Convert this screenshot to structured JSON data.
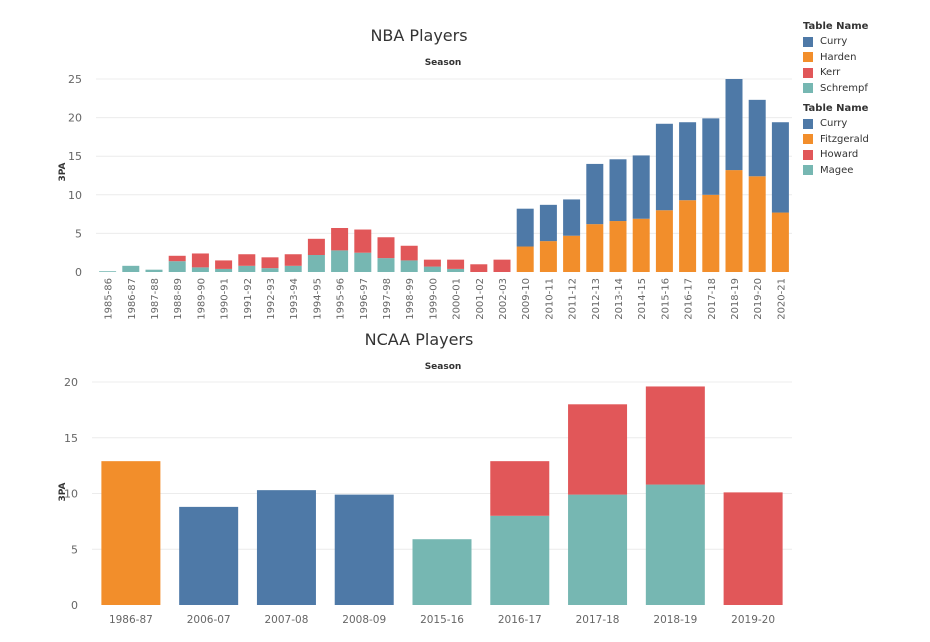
{
  "colors": {
    "blue": "#4e79a7",
    "orange": "#f28e2b",
    "red": "#e15759",
    "teal": "#76b7b2"
  },
  "legends": [
    {
      "title": "Table Name",
      "items": [
        {
          "label": "Curry",
          "color": "#4e79a7"
        },
        {
          "label": "Harden",
          "color": "#f28e2b"
        },
        {
          "label": "Kerr",
          "color": "#e15759"
        },
        {
          "label": "Schrempf",
          "color": "#76b7b2"
        }
      ]
    },
    {
      "title": "Table Name",
      "items": [
        {
          "label": "Curry",
          "color": "#4e79a7"
        },
        {
          "label": "Fitzgerald",
          "color": "#f28e2b"
        },
        {
          "label": "Howard",
          "color": "#e15759"
        },
        {
          "label": "Magee",
          "color": "#76b7b2"
        }
      ]
    }
  ],
  "chart_data": [
    {
      "type": "bar",
      "title": "NBA Players",
      "subtitle": "Season",
      "xlabel": "",
      "ylabel": "3PA",
      "ylim": [
        0,
        25
      ],
      "yticks": [
        0,
        5,
        10,
        15,
        20,
        25
      ],
      "grid": true,
      "stacked": true,
      "categories": [
        "1985-86",
        "1986-87",
        "1987-88",
        "1988-89",
        "1989-90",
        "1990-91",
        "1991-92",
        "1992-93",
        "1993-94",
        "1994-95",
        "1995-96",
        "1996-97",
        "1997-98",
        "1998-99",
        "1999-00",
        "2000-01",
        "2001-02",
        "2002-03",
        "2009-10",
        "2010-11",
        "2011-12",
        "2012-13",
        "2013-14",
        "2014-15",
        "2015-16",
        "2016-17",
        "2017-18",
        "2018-19",
        "2019-20",
        "2020-21"
      ],
      "series": [
        {
          "name": "Schrempf",
          "color": "#76b7b2",
          "values": [
            0.1,
            0.8,
            0.3,
            1.4,
            0.6,
            0.4,
            0.8,
            0.5,
            0.8,
            2.2,
            2.8,
            2.5,
            1.8,
            1.5,
            0.7,
            0.4,
            0,
            0,
            0,
            0,
            0,
            0,
            0,
            0,
            0,
            0,
            0,
            0,
            0,
            0
          ]
        },
        {
          "name": "Kerr",
          "color": "#e15759",
          "values": [
            0,
            0,
            0,
            0.7,
            1.8,
            1.1,
            1.5,
            1.4,
            1.5,
            2.1,
            2.9,
            3.0,
            2.7,
            1.9,
            0.9,
            1.2,
            1.0,
            1.6,
            0,
            0,
            0,
            0,
            0,
            0,
            0,
            0,
            0,
            0,
            0,
            0
          ]
        },
        {
          "name": "Harden",
          "color": "#f28e2b",
          "values": [
            0,
            0,
            0,
            0,
            0,
            0,
            0,
            0,
            0,
            0,
            0,
            0,
            0,
            0,
            0,
            0,
            0,
            0,
            3.3,
            4.0,
            4.7,
            6.2,
            6.6,
            6.9,
            8.0,
            9.3,
            10.0,
            13.2,
            12.4,
            7.7
          ]
        },
        {
          "name": "Curry",
          "color": "#4e79a7",
          "values": [
            0,
            0,
            0,
            0,
            0,
            0,
            0,
            0,
            0,
            0,
            0,
            0,
            0,
            0,
            0,
            0,
            0,
            0,
            4.9,
            4.7,
            4.7,
            7.8,
            8.0,
            8.2,
            11.2,
            10.1,
            9.9,
            11.8,
            9.9,
            11.7
          ]
        }
      ]
    },
    {
      "type": "bar",
      "title": "NCAA Players",
      "subtitle": "Season",
      "xlabel": "",
      "ylabel": "3PA",
      "ylim": [
        0,
        20
      ],
      "yticks": [
        0,
        5,
        10,
        15,
        20
      ],
      "grid": true,
      "stacked": true,
      "categories": [
        "1986-87",
        "2006-07",
        "2007-08",
        "2008-09",
        "2015-16",
        "2016-17",
        "2017-18",
        "2018-19",
        "2019-20"
      ],
      "series": [
        {
          "name": "Magee",
          "color": "#76b7b2",
          "values": [
            0,
            0,
            0,
            0,
            5.9,
            8.0,
            9.9,
            10.8,
            0
          ]
        },
        {
          "name": "Howard",
          "color": "#e15759",
          "values": [
            0,
            0,
            0,
            0,
            0,
            4.9,
            8.1,
            8.8,
            10.1
          ]
        },
        {
          "name": "Fitzgerald",
          "color": "#f28e2b",
          "values": [
            12.9,
            0,
            0,
            0,
            0,
            0,
            0,
            0,
            0
          ]
        },
        {
          "name": "Curry",
          "color": "#4e79a7",
          "values": [
            0,
            8.8,
            10.3,
            9.9,
            0,
            0,
            0,
            0,
            0
          ]
        }
      ]
    }
  ]
}
